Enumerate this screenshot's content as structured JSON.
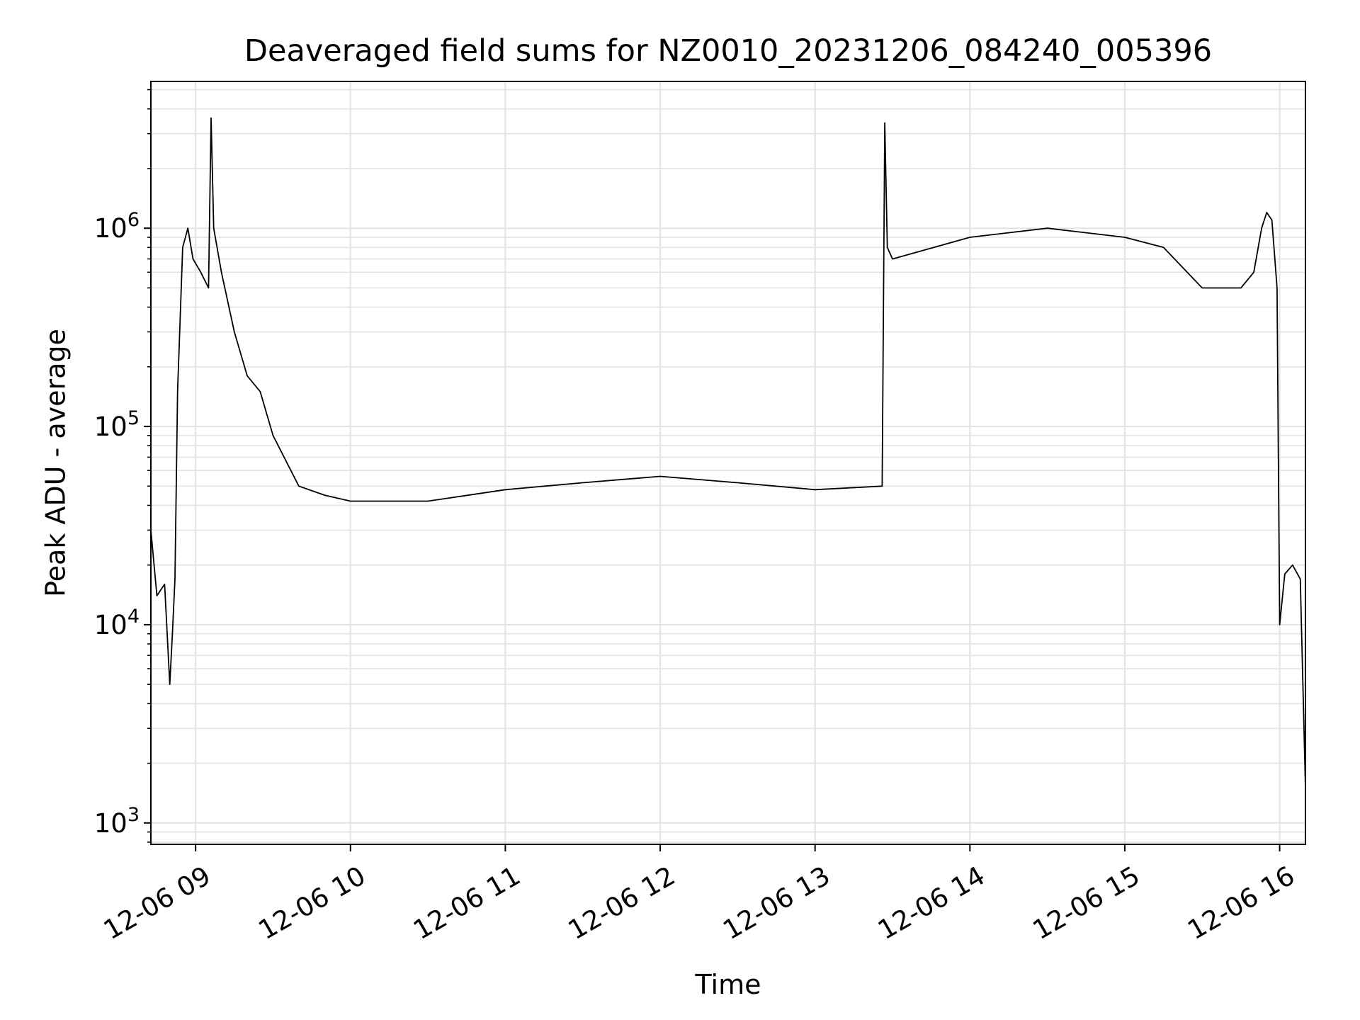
{
  "chart_data": {
    "type": "line",
    "title": "Deaveraged field sums for NZ0010_20231206_084240_005396",
    "xlabel": "Time",
    "ylabel": "Peak ADU - average",
    "yscale": "log",
    "ylim": [
      780,
      5500000
    ],
    "xlim": [
      "2023-12-06 08:42:40",
      "2023-12-06 16:10:00"
    ],
    "grid": true,
    "legend": "none",
    "colors": {
      "line": "#000000",
      "grid": "#e3e3e3",
      "axes": "#000000"
    },
    "x_ticks": [
      {
        "t": "2023-12-06 09:00:00",
        "label": "12-06 09"
      },
      {
        "t": "2023-12-06 10:00:00",
        "label": "12-06 10"
      },
      {
        "t": "2023-12-06 11:00:00",
        "label": "12-06 11"
      },
      {
        "t": "2023-12-06 12:00:00",
        "label": "12-06 12"
      },
      {
        "t": "2023-12-06 13:00:00",
        "label": "12-06 13"
      },
      {
        "t": "2023-12-06 14:00:00",
        "label": "12-06 14"
      },
      {
        "t": "2023-12-06 15:00:00",
        "label": "12-06 15"
      },
      {
        "t": "2023-12-06 16:00:00",
        "label": "12-06 16"
      }
    ],
    "y_ticks": [
      {
        "value": 1000,
        "base": "10",
        "exp": "3"
      },
      {
        "value": 10000,
        "base": "10",
        "exp": "4"
      },
      {
        "value": 100000,
        "base": "10",
        "exp": "5"
      },
      {
        "value": 1000000,
        "base": "10",
        "exp": "6"
      }
    ],
    "series": [
      {
        "x": [
          "2023-12-06 08:42:40",
          "2023-12-06 08:45:00",
          "2023-12-06 08:48:00",
          "2023-12-06 08:50:00",
          "2023-12-06 08:51:00",
          "2023-12-06 08:52:00",
          "2023-12-06 08:53:00",
          "2023-12-06 08:55:00",
          "2023-12-06 08:57:00",
          "2023-12-06 08:59:00",
          "2023-12-06 09:02:00",
          "2023-12-06 09:05:00",
          "2023-12-06 09:06:00",
          "2023-12-06 09:07:00",
          "2023-12-06 09:10:00",
          "2023-12-06 09:15:00",
          "2023-12-06 09:20:00",
          "2023-12-06 09:25:00",
          "2023-12-06 09:30:00",
          "2023-12-06 09:40:00",
          "2023-12-06 09:50:00",
          "2023-12-06 10:00:00",
          "2023-12-06 10:30:00",
          "2023-12-06 11:00:00",
          "2023-12-06 11:30:00",
          "2023-12-06 12:00:00",
          "2023-12-06 12:30:00",
          "2023-12-06 13:00:00",
          "2023-12-06 13:26:00",
          "2023-12-06 13:27:00",
          "2023-12-06 13:28:00",
          "2023-12-06 13:30:00",
          "2023-12-06 14:00:00",
          "2023-12-06 14:30:00",
          "2023-12-06 15:00:00",
          "2023-12-06 15:15:00",
          "2023-12-06 15:30:00",
          "2023-12-06 15:45:00",
          "2023-12-06 15:50:00",
          "2023-12-06 15:53:00",
          "2023-12-06 15:55:00",
          "2023-12-06 15:57:00",
          "2023-12-06 15:59:00",
          "2023-12-06 16:00:00",
          "2023-12-06 16:02:00",
          "2023-12-06 16:05:00",
          "2023-12-06 16:08:00",
          "2023-12-06 16:10:00"
        ],
        "y": [
          30000,
          14000,
          16000,
          5000,
          9000,
          17000,
          150000,
          800000,
          1000000,
          700000,
          600000,
          500000,
          3600000,
          1000000,
          600000,
          300000,
          180000,
          150000,
          90000,
          50000,
          45000,
          42000,
          42000,
          48000,
          52000,
          56000,
          52000,
          48000,
          50000,
          3400000,
          800000,
          700000,
          900000,
          1000000,
          900000,
          800000,
          500000,
          500000,
          600000,
          1000000,
          1200000,
          1100000,
          500000,
          10000,
          18000,
          20000,
          17000,
          1500
        ]
      }
    ]
  }
}
